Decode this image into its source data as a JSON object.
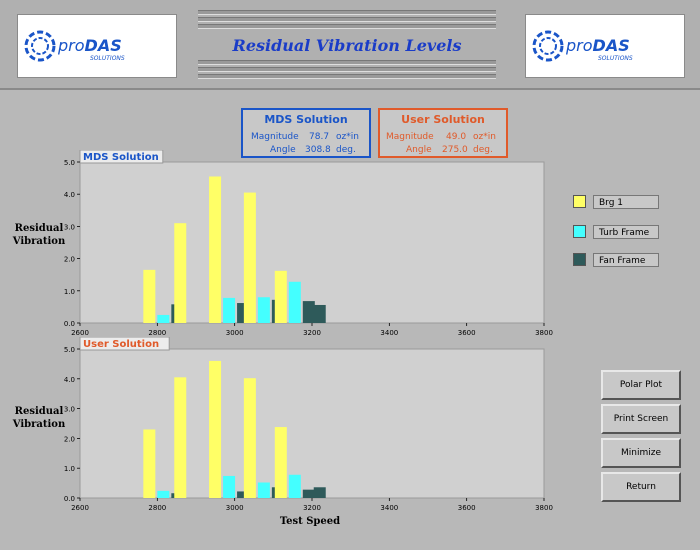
{
  "header": {
    "title": "Residual Vibration Levels",
    "logo_text_main": "pro",
    "logo_text_accent": "DAS",
    "logo_subtext": "SOLUTIONS"
  },
  "mds_solution": {
    "title": "MDS Solution",
    "magnitude_label": "Magnitude",
    "magnitude_value": "78.7",
    "magnitude_unit": "oz*in",
    "angle_label": "Angle",
    "angle_value": "308.8",
    "angle_unit": "deg.",
    "color": "#1a55c8"
  },
  "user_solution": {
    "title": "User Solution",
    "magnitude_label": "Magnitude",
    "magnitude_value": "49.0",
    "magnitude_unit": "oz*in",
    "angle_label": "Angle",
    "angle_value": "275.0",
    "angle_unit": "deg.",
    "color": "#e05a2a"
  },
  "legend": [
    {
      "label": "Brg 1",
      "color": "#ffff66"
    },
    {
      "label": "Turb Frame",
      "color": "#44ffff"
    },
    {
      "label": "Fan Frame",
      "color": "#2e5a5a"
    }
  ],
  "buttons": {
    "polar_plot": "Polar Plot",
    "print_screen": "Print Screen",
    "minimize": "Minimize",
    "return": "Return"
  },
  "axis": {
    "ylabel_line1": "Residual",
    "ylabel_line2": "Vibration",
    "xlabel": "Test Speed"
  },
  "chart_data": [
    {
      "type": "bar",
      "title": "MDS Solution",
      "x_ticks": [
        2600,
        2800,
        3000,
        3200,
        3400,
        3600,
        3800
      ],
      "y_ticks": [
        0.0,
        1.0,
        2.0,
        3.0,
        4.0,
        5.0
      ],
      "xlim": [
        2600,
        3800
      ],
      "ylim": [
        0,
        5
      ],
      "x": [
        2800,
        2880,
        2970,
        3060,
        3140
      ],
      "series": [
        {
          "name": "Brg 1",
          "values": [
            1.65,
            3.1,
            4.55,
            4.05,
            1.62
          ]
        },
        {
          "name": "Turb Frame",
          "values": [
            0.25,
            null,
            0.78,
            0.8,
            1.28
          ]
        },
        {
          "name": "Fan Frame",
          "values": [
            0.58,
            null,
            0.62,
            0.72,
            0.68
          ]
        }
      ],
      "extra_fan_frame": {
        "x": 3220,
        "value": 0.56
      }
    },
    {
      "type": "bar",
      "title": "User Solution",
      "x_ticks": [
        2600,
        2800,
        3000,
        3200,
        3400,
        3600,
        3800
      ],
      "y_ticks": [
        0.0,
        1.0,
        2.0,
        3.0,
        4.0,
        5.0
      ],
      "xlim": [
        2600,
        3800
      ],
      "ylim": [
        0,
        5
      ],
      "x": [
        2800,
        2880,
        2970,
        3060,
        3140
      ],
      "series": [
        {
          "name": "Brg 1",
          "values": [
            2.3,
            4.05,
            4.6,
            4.02,
            2.38
          ]
        },
        {
          "name": "Turb Frame",
          "values": [
            0.24,
            null,
            0.74,
            0.52,
            0.78
          ]
        },
        {
          "name": "Fan Frame",
          "values": [
            0.16,
            null,
            0.22,
            0.36,
            0.28
          ]
        }
      ],
      "extra_fan_frame": {
        "x": 3220,
        "value": 0.36
      }
    }
  ]
}
